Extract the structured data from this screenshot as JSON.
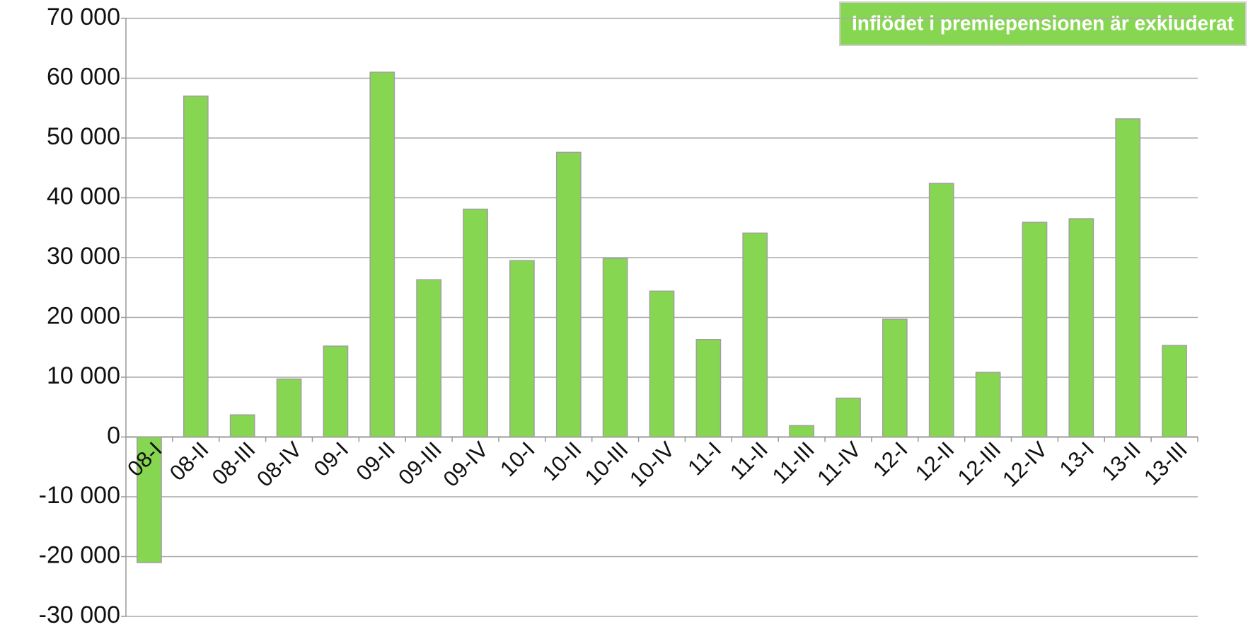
{
  "chart_data": {
    "type": "bar",
    "annotation": "Inflödet i premiepensionen är exkluderat",
    "categories": [
      "08-I",
      "08-II",
      "08-III",
      "08-IV",
      "09-I",
      "09-II",
      "09-III",
      "09-IV",
      "10-I",
      "10-II",
      "10-III",
      "10-IV",
      "11-I",
      "11-II",
      "11-III",
      "11-IV",
      "12-I",
      "12-II",
      "12-III",
      "12-IV",
      "13-I",
      "13-II",
      "13-III"
    ],
    "values": [
      -21000,
      57000,
      3700,
      9700,
      15200,
      61000,
      26300,
      38100,
      29500,
      47600,
      29900,
      24400,
      16300,
      34100,
      1900,
      6500,
      19700,
      42400,
      10800,
      35900,
      36500,
      53200,
      15300
    ],
    "color": "#87d651",
    "ylim": [
      -30000,
      70000
    ],
    "yticks": [
      {
        "value": -30000,
        "label": "-30 000"
      },
      {
        "value": -20000,
        "label": "-20 000"
      },
      {
        "value": -10000,
        "label": "-10 000"
      },
      0,
      {
        "value": 10000,
        "label": "10 000"
      },
      {
        "value": 20000,
        "label": "20 000"
      },
      {
        "value": 30000,
        "label": "30 000"
      },
      {
        "value": 40000,
        "label": "40 000"
      },
      {
        "value": 50000,
        "label": "50 000"
      },
      {
        "value": 60000,
        "label": "60 000"
      },
      {
        "value": 70000,
        "label": "70 000"
      }
    ],
    "grid": true
  }
}
